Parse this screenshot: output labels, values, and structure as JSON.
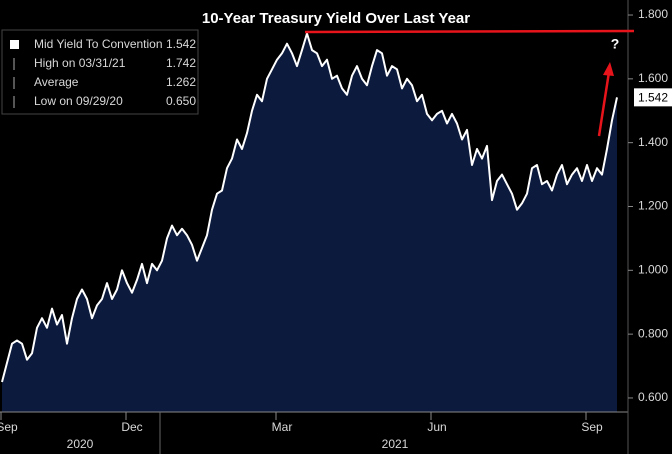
{
  "chart_data": {
    "type": "area",
    "title": "10-Year Treasury Yield Over Last Year",
    "categories": [
      null,
      "Sep",
      null,
      null,
      null,
      null,
      null,
      null,
      null,
      null,
      null,
      null,
      null,
      null,
      null,
      null,
      null,
      null,
      null,
      null,
      null,
      null,
      null,
      null,
      null,
      null,
      "Dec",
      null,
      null,
      null,
      null,
      null,
      null,
      null,
      null,
      null,
      null,
      null,
      null,
      null,
      null,
      null,
      null,
      null,
      null,
      null,
      null,
      null,
      null,
      null,
      null,
      null,
      null,
      null,
      null,
      null,
      "Mar",
      null,
      null,
      null,
      null,
      null,
      null,
      null,
      null,
      null,
      null,
      null,
      null,
      null,
      null,
      null,
      null,
      null,
      null,
      null,
      null,
      null,
      null,
      null,
      null,
      null,
      null,
      null,
      null,
      null,
      null,
      "Jun",
      null,
      null,
      null,
      null,
      null,
      null,
      null,
      null,
      null,
      null,
      null,
      null,
      null,
      null,
      null,
      null,
      null,
      null,
      null,
      null,
      null,
      null,
      null,
      null,
      null,
      null,
      null,
      null,
      null,
      null,
      "Sep",
      null,
      null,
      null,
      null,
      null
    ],
    "year_labels": [
      "2020",
      "2021"
    ],
    "series": [
      {
        "name": "Mid Yield To Convention",
        "color": "#ffffff",
        "fill": "#0c1a3d",
        "values": [
          0.65,
          0.71,
          0.77,
          0.78,
          0.77,
          0.72,
          0.74,
          0.82,
          0.85,
          0.82,
          0.88,
          0.83,
          0.86,
          0.77,
          0.85,
          0.91,
          0.94,
          0.91,
          0.85,
          0.89,
          0.91,
          0.96,
          0.91,
          0.94,
          1.0,
          0.96,
          0.93,
          0.97,
          1.02,
          0.96,
          1.02,
          1.0,
          1.03,
          1.1,
          1.14,
          1.11,
          1.13,
          1.11,
          1.08,
          1.03,
          1.07,
          1.11,
          1.19,
          1.24,
          1.25,
          1.32,
          1.35,
          1.41,
          1.38,
          1.43,
          1.5,
          1.55,
          1.53,
          1.6,
          1.63,
          1.66,
          1.68,
          1.71,
          1.68,
          1.64,
          1.69,
          1.742,
          1.69,
          1.68,
          1.64,
          1.66,
          1.6,
          1.61,
          1.57,
          1.55,
          1.61,
          1.64,
          1.6,
          1.58,
          1.64,
          1.69,
          1.68,
          1.61,
          1.64,
          1.63,
          1.57,
          1.6,
          1.58,
          1.53,
          1.55,
          1.49,
          1.47,
          1.49,
          1.5,
          1.46,
          1.49,
          1.46,
          1.41,
          1.44,
          1.33,
          1.38,
          1.35,
          1.39,
          1.22,
          1.28,
          1.3,
          1.27,
          1.24,
          1.19,
          1.21,
          1.24,
          1.32,
          1.33,
          1.27,
          1.28,
          1.25,
          1.3,
          1.33,
          1.27,
          1.3,
          1.32,
          1.28,
          1.33,
          1.28,
          1.32,
          1.3,
          1.38,
          1.47,
          1.542
        ]
      }
    ],
    "legend_stats": [
      {
        "label": "High on 03/31/21",
        "value": "1.742"
      },
      {
        "label": "Average",
        "value": "1.262"
      },
      {
        "label": "Low on 09/29/20",
        "value": "0.650"
      }
    ],
    "legend_value": "1.542",
    "ylim": [
      0.556,
      1.822
    ],
    "yticks": [
      {
        "value": 0.6,
        "label": "0.600"
      },
      {
        "value": 0.8,
        "label": "0.800"
      },
      {
        "value": 1.0,
        "label": "1.000"
      },
      {
        "value": 1.2,
        "label": "1.200"
      },
      {
        "value": 1.4,
        "label": "1.400"
      },
      {
        "value": 1.6,
        "label": "1.600"
      },
      {
        "value": 1.8,
        "label": "1.800"
      }
    ],
    "grid": false,
    "annotation": "?"
  }
}
